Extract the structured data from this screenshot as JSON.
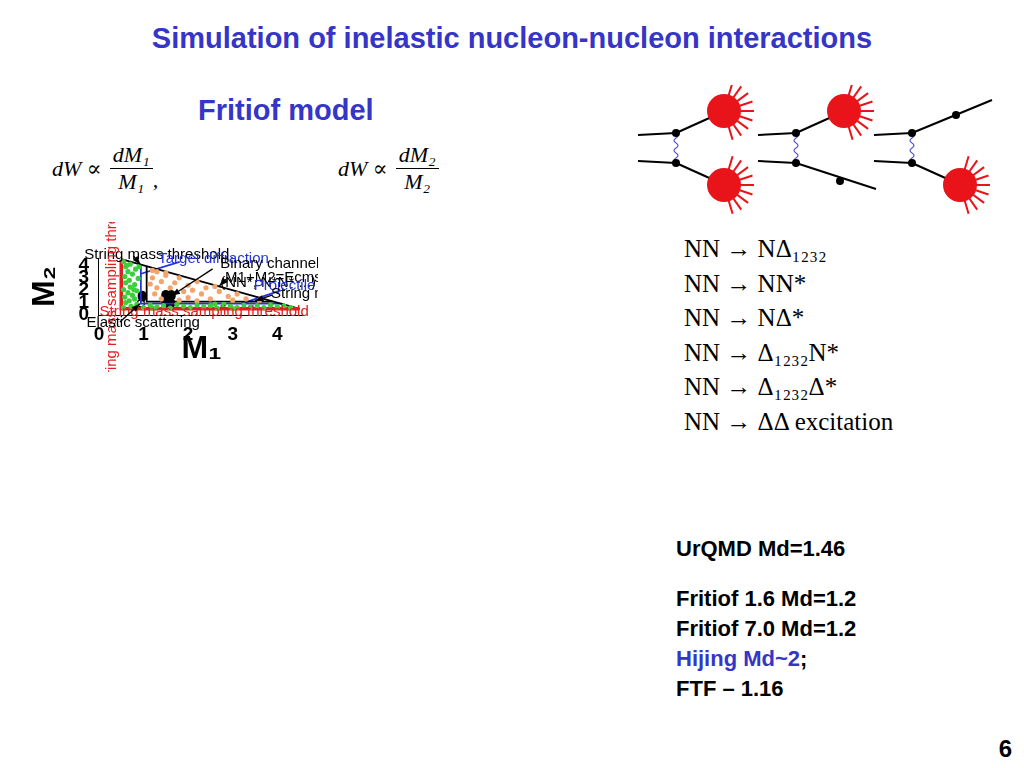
{
  "title": "Simulation of inelastic nucleon-nucleon interactions",
  "subtitle": "Fritiof model",
  "formulas": [
    {
      "lhs": "dW ∝",
      "numerator": "dM₁",
      "denominator": "M₁",
      "tail": ","
    },
    {
      "lhs": "dW ∝",
      "numerator": "dM₂",
      "denominator": "M₂"
    }
  ],
  "reactions": [
    "NN → NΔ₁₂₃₂",
    "NN → NN*",
    "NN → NΔ*",
    "NN → Δ₁₂₃₂N*",
    "NN → Δ₁₂₃₂Δ*",
    "NN → ΔΔ excitation"
  ],
  "models": [
    {
      "text": "UrQMD Md=1.46",
      "color": "#000000"
    },
    {
      "text": "Fritiof 1.6 Md=1.2",
      "color": "#000000"
    },
    {
      "text": "Fritiof 7.0 Md=1.2",
      "color": "#000000"
    },
    {
      "text": "Hijing Md~2",
      "color": "#3535c8",
      "suffix": ";"
    },
    {
      "text": "FTF – 1.16",
      "color": "#000000"
    }
  ],
  "page_number": "6",
  "chart_data": {
    "type": "scatter",
    "x_label": "M₁",
    "y_label": "M₂",
    "xlim": [
      0,
      4.6
    ],
    "ylim": [
      0,
      4.6
    ],
    "xticks": [
      0,
      1,
      2,
      3,
      4
    ],
    "yticks": [
      0,
      1,
      2,
      3,
      4
    ],
    "grid": false,
    "annotations": [
      {
        "text": "String mass threshold",
        "color": "#000000"
      },
      {
        "text": "Target diffraction",
        "color": "#2233dd"
      },
      {
        "text": "Binary channels\n(NN*, N*N* ...)",
        "color": "#000000"
      },
      {
        "text": "M1+M2=Ecms",
        "color": "#000000"
      },
      {
        "text": "Projectile diffraction",
        "color": "#2233dd"
      },
      {
        "text": "String mass threshold",
        "color": "#000000"
      },
      {
        "text": "String mass sampling threshold",
        "color": "#e02020"
      },
      {
        "text": "String mass sampling threshold",
        "color": "#e02020"
      },
      {
        "text": "Elastic scattering",
        "color": "#000000"
      }
    ],
    "series": [
      {
        "type": "scatter",
        "color": "#3ccf3c",
        "marker": "circle",
        "x": [
          0.55,
          0.7,
          0.6,
          0.82,
          0.65,
          0.75,
          0.58,
          0.88,
          0.68,
          0.6,
          0.8,
          0.7,
          0.55,
          0.85,
          0.65,
          0.75,
          0.58,
          0.8,
          0.68,
          0.6,
          0.85,
          0.72,
          0.55,
          0.9,
          0.62,
          0.78,
          1.0,
          1.15,
          1.3,
          1.45,
          1.6,
          1.75,
          1.9,
          2.05,
          2.2,
          2.35,
          2.5,
          2.65,
          2.8,
          2.95,
          3.1,
          3.25,
          3.4,
          3.55,
          3.7,
          3.85,
          4.0,
          4.15,
          4.3,
          1.2,
          2.6,
          3.0
        ],
        "y": [
          4.3,
          4.1,
          3.9,
          3.7,
          3.5,
          3.3,
          3.1,
          2.95,
          2.8,
          2.6,
          2.45,
          2.25,
          2.05,
          1.95,
          1.8,
          1.6,
          1.45,
          1.3,
          1.15,
          1.0,
          0.85,
          0.7,
          0.6,
          3.9,
          4.0,
          2.05,
          0.6,
          0.8,
          0.65,
          0.75,
          0.55,
          0.85,
          0.7,
          0.6,
          0.8,
          0.65,
          0.75,
          0.55,
          0.85,
          0.7,
          0.6,
          0.8,
          0.65,
          0.75,
          0.6,
          0.8,
          0.65,
          0.72,
          0.6,
          0.55,
          0.88,
          0.52
        ]
      },
      {
        "type": "scatter",
        "color": "#f2a46a",
        "marker": "circle",
        "x": [
          1.3,
          1.2,
          1.5,
          1.4,
          1.8,
          1.7,
          2.0,
          1.6,
          1.3,
          2.2,
          2.4,
          1.9,
          2.3,
          2.7,
          2.9,
          2.5,
          3.1,
          3.3,
          3.6,
          2.0,
          1.4,
          1.8,
          2.2,
          1.25,
          1.5,
          1.2,
          2.6,
          3.0,
          1.15,
          2.1
        ],
        "y": [
          3.5,
          3.0,
          3.2,
          2.7,
          3.0,
          2.6,
          2.4,
          2.2,
          2.2,
          2.7,
          2.2,
          1.9,
          1.7,
          1.9,
          1.5,
          1.3,
          1.7,
          1.3,
          1.2,
          1.4,
          1.3,
          1.2,
          1.15,
          1.7,
          3.4,
          3.6,
          2.3,
          1.2,
          2.5,
          2.0
        ]
      },
      {
        "type": "line",
        "color": "#e02020",
        "line_style": "thick",
        "x": [
          0.5,
          0.5,
          4.5
        ],
        "y": [
          4.45,
          0.5,
          0.5
        ]
      },
      {
        "type": "line",
        "color": "#000000",
        "line_style": "solid",
        "x": [
          0.5,
          4.5
        ],
        "y": [
          4.5,
          0.5
        ]
      },
      {
        "type": "line",
        "color": "#000000",
        "line_style": "solid",
        "x": [
          1.07,
          1.07,
          3.9
        ],
        "y": [
          3.9,
          1.08,
          1.08
        ]
      },
      {
        "type": "line",
        "color": "#2233dd",
        "line_style": "solid",
        "x": [
          0.94,
          0.94,
          4.1
        ],
        "y": [
          4.07,
          0.92,
          0.92
        ]
      },
      {
        "type": "line",
        "color": "#2233dd",
        "line_style": "solid",
        "x": [
          0.94,
          1.81
        ],
        "y": [
          3.33,
          4.29
        ]
      },
      {
        "type": "line",
        "color": "#2233dd",
        "line_style": "solid",
        "x": [
          3.2,
          4.08
        ],
        "y": [
          0.92,
          1.99
        ]
      },
      {
        "type": "scatter",
        "color": "#000000",
        "marker": "circle",
        "x": [
          0.97,
          0.97,
          1.5,
          1.5,
          1.62,
          1.62,
          1.5,
          1.62
        ],
        "y": [
          1.6,
          1.45,
          1.65,
          1.5,
          1.65,
          1.5,
          0.95,
          0.95
        ]
      },
      {
        "type": "scatter",
        "color": "#000000",
        "marker": "open_circle",
        "x": [
          0.94
        ],
        "y": [
          0.94
        ]
      }
    ]
  }
}
